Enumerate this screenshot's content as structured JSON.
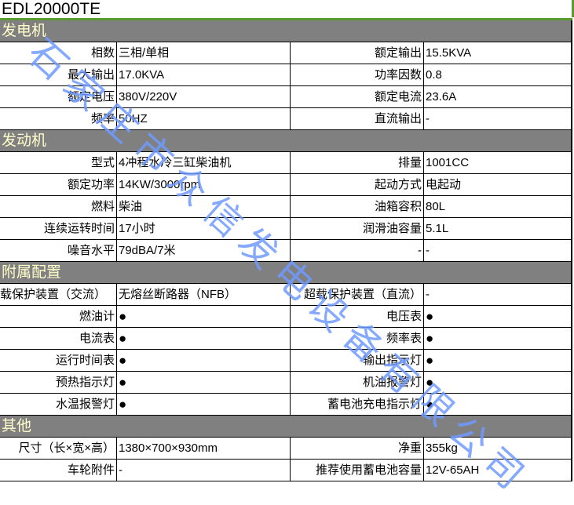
{
  "title": "EDL20000TE",
  "sections": [
    {
      "name": "发电机",
      "rows": [
        [
          "相数",
          "三相/单相",
          "额定输出",
          "15.5KVA"
        ],
        [
          "最大输出",
          "17.0KVA",
          "功率因数",
          "0.8"
        ],
        [
          "额定电压",
          "380V/220V",
          "额定电流",
          "23.6A"
        ],
        [
          "频率",
          "50HZ",
          "直流输出",
          "-"
        ]
      ]
    },
    {
      "name": "发动机",
      "rows": [
        [
          "型式",
          "4冲程水冷三缸柴油机",
          "排量",
          "1001CC"
        ],
        [
          "额定功率",
          "14KW/3000rpm",
          "起动方式",
          "电起动"
        ],
        [
          "燃料",
          "柴油",
          "油箱容积",
          "80L"
        ],
        [
          "连续运转时间",
          "17小时",
          "润滑油容量",
          "5.1L"
        ],
        [
          "噪音水平",
          "79dBA/7米",
          "-",
          "-"
        ]
      ]
    },
    {
      "name": "附属配置",
      "rows": [
        [
          "载保护装置（交流）",
          "无熔丝断路器（NFB）",
          "超载保护装置（直流）",
          "-"
        ],
        [
          "燃油计",
          "●",
          "电压表",
          "●"
        ],
        [
          "电流表",
          "●",
          "频率表",
          "●"
        ],
        [
          "运行时间表",
          "●",
          "输出指示灯",
          "●"
        ],
        [
          "预热指示灯",
          "●",
          "机油报警灯",
          "●"
        ],
        [
          "水温报警灯",
          "●",
          "蓄电池充电指示灯",
          "●"
        ]
      ]
    },
    {
      "name": "其他",
      "rows": [
        [
          "尺寸（长×宽×高）",
          "1380×700×930mm",
          "净重",
          "355kg"
        ],
        [
          "车轮附件",
          "-",
          "推荐使用蓄电池容量",
          "12V-65AH"
        ]
      ]
    }
  ],
  "watermark": "石家庄市众信发电设备有限公司"
}
